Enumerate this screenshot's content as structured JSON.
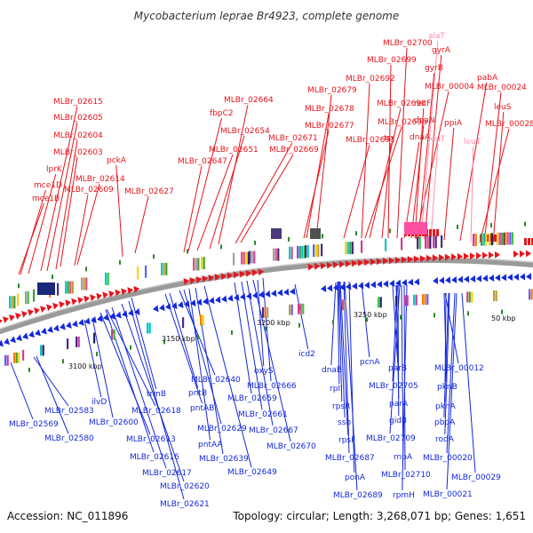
{
  "title": "Mycobacterium leprae Br4923, complete genome",
  "accession": "Accession: NC_011896",
  "topology": "Topology: circular; Length: 3,268,071 bp; Genes: 1,651",
  "colors": {
    "forward": "#e8141c",
    "reverse": "#1428dc",
    "rna": "#ff8fb0",
    "backbone": "#808080"
  },
  "scale_labels": [
    "3100 kbp",
    "3150 kbp",
    "3200 kbp",
    "3250 kbp",
    "50 kbp"
  ],
  "forward_labels": [
    "MLBr_02615",
    "MLBr_02605",
    "MLBr_02604",
    "MLBr_02603",
    "lprK",
    "mce1D",
    "mce1B",
    "MLBr_02614",
    "MLBr_02609",
    "pckA",
    "MLBr_02627",
    "MLBr_02664",
    "fbpC2",
    "MLBr_02654",
    "MLBr_02651",
    "MLBr_02647",
    "MLBr_02669",
    "MLBr_02671",
    "MLBr_02679",
    "MLBr_02678",
    "MLBr_02677",
    "MLBr_02700",
    "MLBr_02699",
    "MLBr_02692",
    "MLBr_02698",
    "MLBr_02696",
    "MLBr_02691",
    "trx",
    "gyrA",
    "gyrB",
    "MLBr_00004",
    "recF",
    "dnaN",
    "dnaA",
    "pabA",
    "ppiA",
    "MLBr_00024",
    "leuS",
    "MLBr_00028"
  ],
  "rna_labels": [
    "alaT",
    "leuT",
    "leuT"
  ],
  "reverse_labels": [
    "MLBr_02569",
    "MLBr_02583",
    "MLBr_02580",
    "ilvD",
    "MLBr_02600",
    "trmB",
    "MLBr_02618",
    "MLBr_02613",
    "MLBr_02616",
    "MLBr_02617",
    "MLBr_02620",
    "MLBr_02621",
    "pntB",
    "pntAB",
    "MLBr_02640",
    "MLBr_02629",
    "pntAA",
    "MLBr_02639",
    "MLBr_02649",
    "oxyS",
    "MLBr_02666",
    "MLBr_02659",
    "MLBr_02661",
    "MLBr_02667",
    "MLBr_02670",
    "icd2",
    "dnaB",
    "rpII",
    "rpsR",
    "ssb",
    "rpsF",
    "MLBr_02687",
    "ponA",
    "MLBr_02689",
    "pcnA",
    "parB",
    "MLBr_02705",
    "parA",
    "gidB",
    "MLBr_02709",
    "rnpA",
    "MLBr_02710",
    "rpmH",
    "MLBr_00012",
    "pknB",
    "pknA",
    "pbpA",
    "rodA",
    "MLBr_00020",
    "MLBr_00029",
    "MLBr_00021"
  ]
}
